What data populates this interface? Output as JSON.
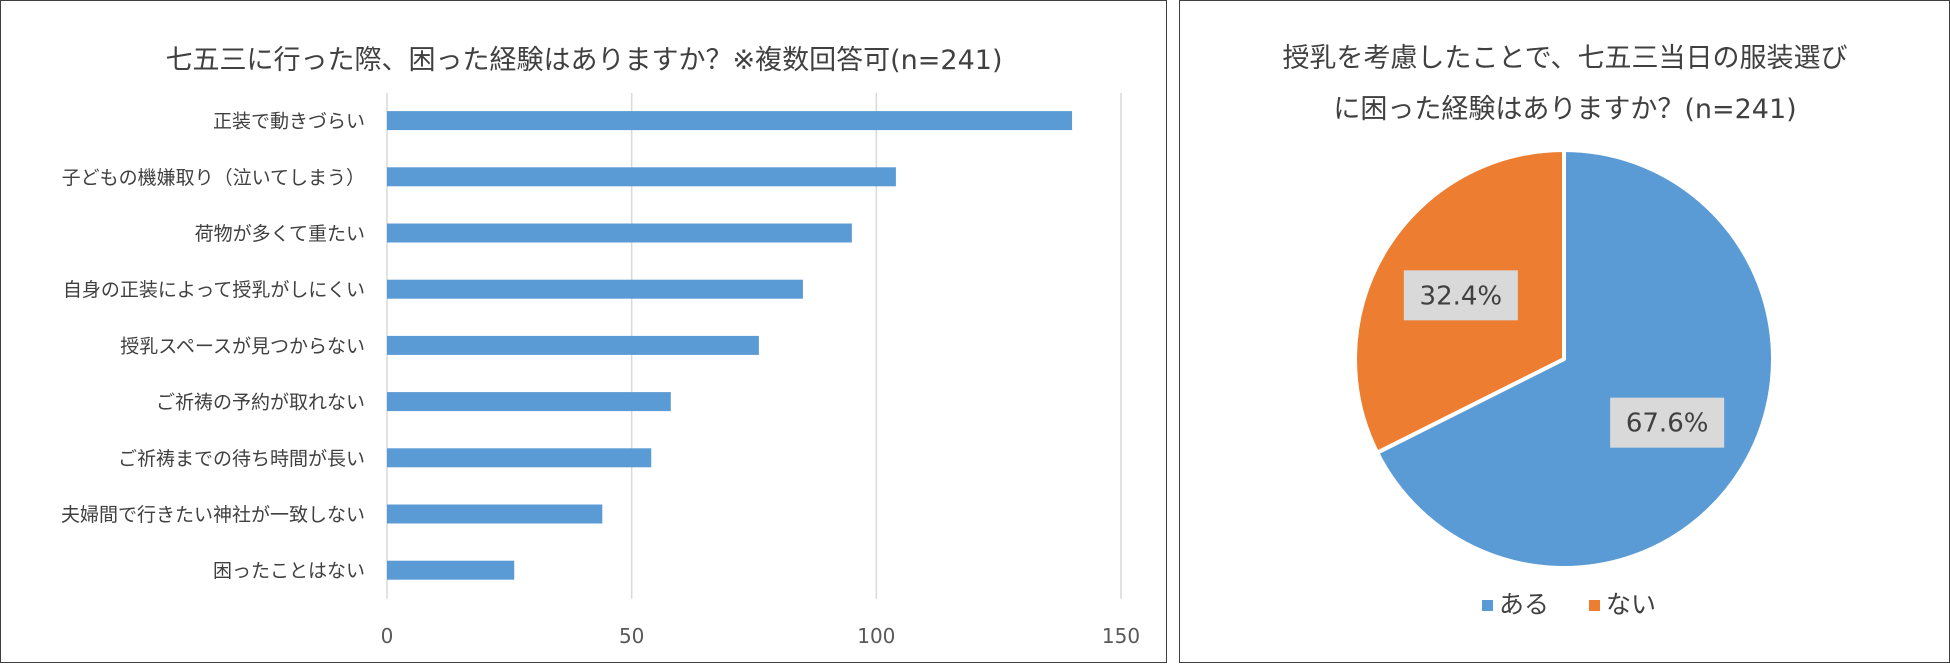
{
  "chart_data": [
    {
      "type": "bar",
      "orientation": "horizontal",
      "title": "七五三に行った際、困った経験はありますか？※複数回答可(n=241)",
      "categories": [
        "正装で動きづらい",
        "子どもの機嫌取り（泣いてしまう）",
        "荷物が多くて重たい",
        "自身の正装によって授乳がしにくい",
        "授乳スペースが見つからない",
        "ご祈祷の予約が取れない",
        "ご祈祷までの待ち時間が長い",
        "夫婦間で行きたい神社が一致しない",
        "困ったことはない"
      ],
      "values": [
        140,
        104,
        95,
        85,
        76,
        58,
        54,
        44,
        26
      ],
      "xlim": [
        0,
        150
      ],
      "xticks": [
        "0",
        "50",
        "100",
        "150"
      ],
      "tick_values": [
        0,
        50,
        100,
        150
      ],
      "grid": "vertical",
      "color": "#5b9bd5"
    },
    {
      "type": "pie",
      "title_lines": [
        "授乳を考慮したことで、七五三当日の服装選び",
        "に困った経験はありますか？(n=241)"
      ],
      "slices": [
        {
          "label": "ある",
          "value": 67.6,
          "display": "67.6%",
          "color": "#5b9bd5"
        },
        {
          "label": "ない",
          "value": 32.4,
          "display": "32.4%",
          "color": "#ed7d31"
        }
      ],
      "legend_position": "bottom"
    }
  ]
}
